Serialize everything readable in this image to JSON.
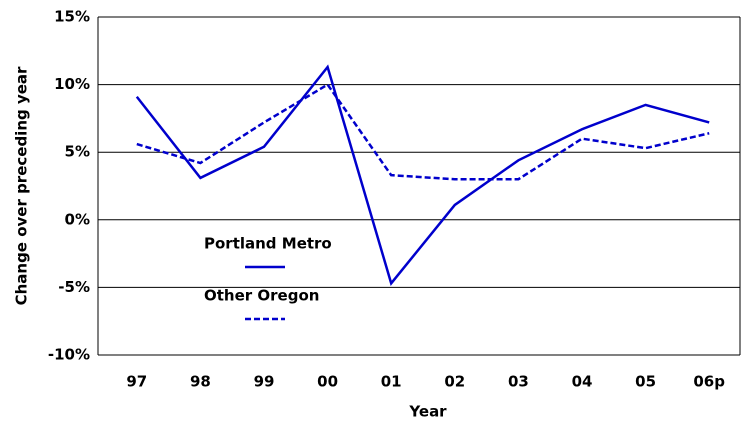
{
  "chart_data": {
    "type": "line",
    "x_label": "Year",
    "y_label": "Change over preceding year",
    "categories": [
      "97",
      "98",
      "99",
      "00",
      "01",
      "02",
      "03",
      "04",
      "05",
      "06p"
    ],
    "series": [
      {
        "name": "Portland Metro",
        "color": "#0000cc",
        "dash": false,
        "values": [
          9.1,
          3.1,
          5.4,
          11.3,
          -4.7,
          1.1,
          4.4,
          6.7,
          8.5,
          7.2
        ]
      },
      {
        "name": "Other Oregon",
        "color": "#0000cc",
        "dash": true,
        "values": [
          5.6,
          4.2,
          7.2,
          10.0,
          3.3,
          3.0,
          3.0,
          6.0,
          5.3,
          6.4
        ]
      }
    ],
    "ylim": [
      -10,
      15
    ],
    "yticks": [
      {
        "value": -10,
        "label": "-10%"
      },
      {
        "value": -5,
        "label": "-5%"
      },
      {
        "value": 0,
        "label": "0%"
      },
      {
        "value": 5,
        "label": "5%"
      },
      {
        "value": 10,
        "label": "10%"
      },
      {
        "value": 15,
        "label": "15%"
      }
    ],
    "grid": true
  }
}
